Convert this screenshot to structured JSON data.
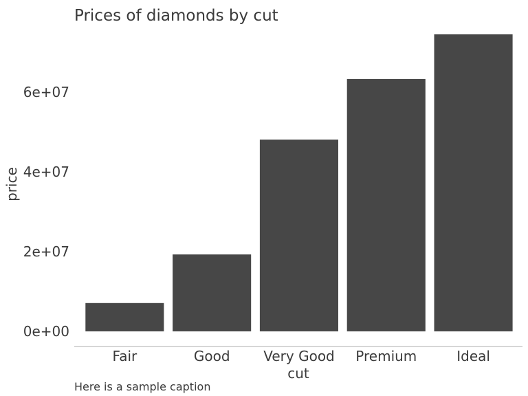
{
  "chart_data": {
    "type": "bar",
    "title": "Prices of diamonds by cut",
    "xlabel": "cut",
    "ylabel": "price",
    "caption": "Here is a sample caption",
    "categories": [
      "Fair",
      "Good",
      "Very Good",
      "Premium",
      "Ideal"
    ],
    "values": [
      7100000,
      19300000,
      48100000,
      63300000,
      74500000
    ],
    "ylim": [
      0,
      80000000
    ],
    "yticks": [
      0,
      20000000,
      40000000,
      60000000
    ],
    "ytick_labels": [
      "0e+00",
      "2e+07",
      "4e+07",
      "6e+07"
    ],
    "bar_color": "#474747",
    "axis_line_color": "#bdbdbd",
    "grid": false,
    "legend": "none"
  }
}
